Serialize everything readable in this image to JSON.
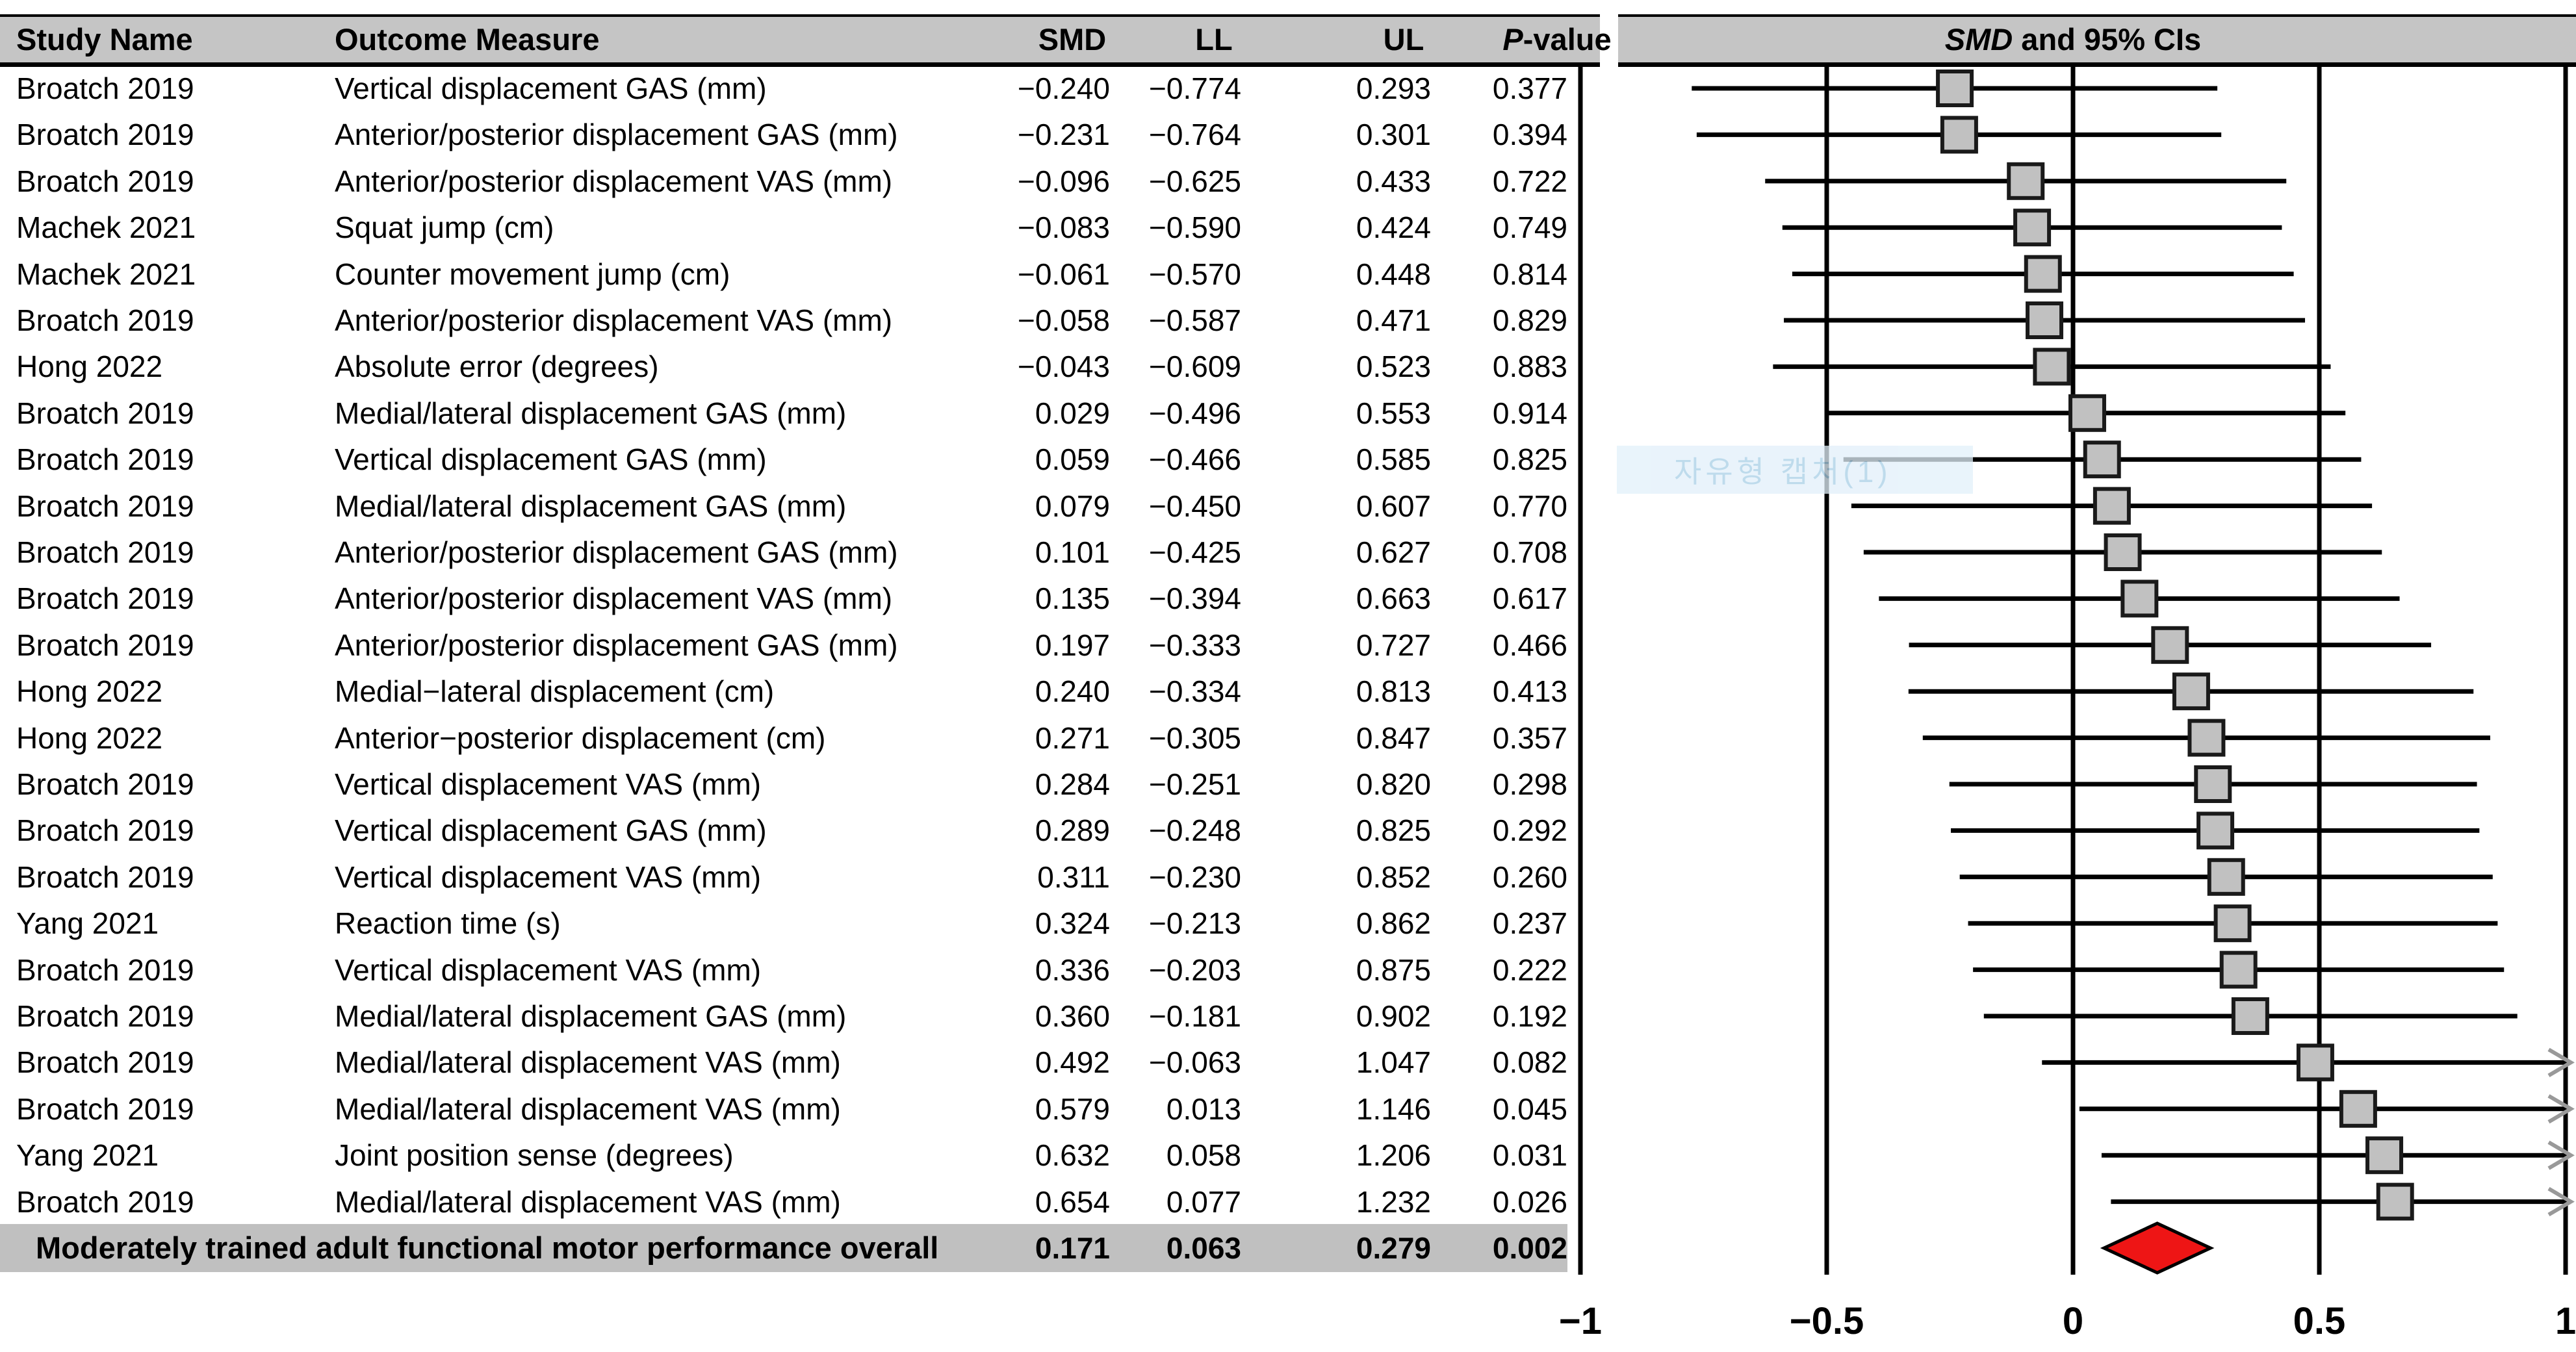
{
  "table": {
    "headers": {
      "study": "Study Name",
      "outcome": "Outcome Measure",
      "smd": "SMD",
      "ll": "LL",
      "ul": "UL",
      "p_italic": "P",
      "p_rest": "-value"
    },
    "overall": {
      "label": "Moderately trained adult functional motor performance overall",
      "smd": 0.171,
      "ll": 0.063,
      "ul": 0.279,
      "p": 0.002
    }
  },
  "plot": {
    "title_italic": "SMD",
    "title_rest": " and 95% CIs"
  },
  "watermark": {
    "text": "자유형 캡처(1)"
  },
  "colors": {
    "header_band": "#c5c5c5",
    "overall_band": "#c0c0c0",
    "square_fill": "#c1c1c1",
    "square_border": "#1a1a1a",
    "ci_line": "#000000",
    "grid_line": "#000000",
    "diamond_fill": "#ee1515",
    "diamond_border": "#000000",
    "arrow": "#999999",
    "watermark_band": "#e2f0fa",
    "watermark_text": "#a9cfe6"
  },
  "chart_data": {
    "type": "forest",
    "title": "SMD and 95% CIs",
    "columns": [
      "Study Name",
      "Outcome Measure",
      "SMD",
      "LL",
      "UL",
      "P-value"
    ],
    "xlim": [
      -1,
      1
    ],
    "x_ticks": [
      {
        "label": "−1",
        "value": -1
      },
      {
        "label": "−0.5",
        "value": -0.5
      },
      {
        "label": "0",
        "value": 0
      },
      {
        "label": "0.5",
        "value": 0.5
      },
      {
        "label": "1",
        "value": 1
      }
    ],
    "grid": "vertical-lines-at-ticks",
    "legend_position": "none",
    "rows": [
      {
        "study": "Broatch 2019",
        "outcome": "Vertical displacement GAS (mm)",
        "smd": -0.24,
        "ll": -0.774,
        "ul": 0.293,
        "p": 0.377
      },
      {
        "study": "Broatch 2019",
        "outcome": "Anterior/posterior displacement GAS (mm)",
        "smd": -0.231,
        "ll": -0.764,
        "ul": 0.301,
        "p": 0.394
      },
      {
        "study": "Broatch 2019",
        "outcome": "Anterior/posterior displacement VAS (mm)",
        "smd": -0.096,
        "ll": -0.625,
        "ul": 0.433,
        "p": 0.722
      },
      {
        "study": "Machek 2021",
        "outcome": "Squat jump (cm)",
        "smd": -0.083,
        "ll": -0.59,
        "ul": 0.424,
        "p": 0.749
      },
      {
        "study": "Machek 2021",
        "outcome": "Counter movement jump (cm)",
        "smd": -0.061,
        "ll": -0.57,
        "ul": 0.448,
        "p": 0.814
      },
      {
        "study": "Broatch 2019",
        "outcome": "Anterior/posterior displacement VAS (mm)",
        "smd": -0.058,
        "ll": -0.587,
        "ul": 0.471,
        "p": 0.829
      },
      {
        "study": "Hong 2022",
        "outcome": "Absolute error (degrees)",
        "smd": -0.043,
        "ll": -0.609,
        "ul": 0.523,
        "p": 0.883
      },
      {
        "study": "Broatch 2019",
        "outcome": "Medial/lateral displacement GAS (mm)",
        "smd": 0.029,
        "ll": -0.496,
        "ul": 0.553,
        "p": 0.914
      },
      {
        "study": "Broatch 2019",
        "outcome": "Vertical displacement GAS (mm)",
        "smd": 0.059,
        "ll": -0.466,
        "ul": 0.585,
        "p": 0.825
      },
      {
        "study": "Broatch 2019",
        "outcome": "Medial/lateral displacement GAS (mm)",
        "smd": 0.079,
        "ll": -0.45,
        "ul": 0.607,
        "p": 0.77
      },
      {
        "study": "Broatch 2019",
        "outcome": "Anterior/posterior displacement GAS (mm)",
        "smd": 0.101,
        "ll": -0.425,
        "ul": 0.627,
        "p": 0.708
      },
      {
        "study": "Broatch 2019",
        "outcome": "Anterior/posterior displacement VAS (mm)",
        "smd": 0.135,
        "ll": -0.394,
        "ul": 0.663,
        "p": 0.617
      },
      {
        "study": "Broatch 2019",
        "outcome": "Anterior/posterior displacement GAS (mm)",
        "smd": 0.197,
        "ll": -0.333,
        "ul": 0.727,
        "p": 0.466
      },
      {
        "study": "Hong 2022",
        "outcome": "Medial−lateral displacement (cm)",
        "smd": 0.24,
        "ll": -0.334,
        "ul": 0.813,
        "p": 0.413
      },
      {
        "study": "Hong 2022",
        "outcome": "Anterior−posterior displacement (cm)",
        "smd": 0.271,
        "ll": -0.305,
        "ul": 0.847,
        "p": 0.357
      },
      {
        "study": "Broatch 2019",
        "outcome": "Vertical displacement VAS (mm)",
        "smd": 0.284,
        "ll": -0.251,
        "ul": 0.82,
        "p": 0.298
      },
      {
        "study": "Broatch 2019",
        "outcome": "Vertical displacement GAS (mm)",
        "smd": 0.289,
        "ll": -0.248,
        "ul": 0.825,
        "p": 0.292
      },
      {
        "study": "Broatch 2019",
        "outcome": "Vertical displacement VAS (mm)",
        "smd": 0.311,
        "ll": -0.23,
        "ul": 0.852,
        "p": 0.26
      },
      {
        "study": "Yang 2021",
        "outcome": "Reaction time (s)",
        "smd": 0.324,
        "ll": -0.213,
        "ul": 0.862,
        "p": 0.237
      },
      {
        "study": "Broatch 2019",
        "outcome": "Vertical displacement VAS (mm)",
        "smd": 0.336,
        "ll": -0.203,
        "ul": 0.875,
        "p": 0.222
      },
      {
        "study": "Broatch 2019",
        "outcome": "Medial/lateral displacement GAS (mm)",
        "smd": 0.36,
        "ll": -0.181,
        "ul": 0.902,
        "p": 0.192
      },
      {
        "study": "Broatch 2019",
        "outcome": "Medial/lateral displacement VAS (mm)",
        "smd": 0.492,
        "ll": -0.063,
        "ul": 1.047,
        "p": 0.082
      },
      {
        "study": "Broatch 2019",
        "outcome": "Medial/lateral displacement VAS (mm)",
        "smd": 0.579,
        "ll": 0.013,
        "ul": 1.146,
        "p": 0.045
      },
      {
        "study": "Yang 2021",
        "outcome": "Joint position sense (degrees)",
        "smd": 0.632,
        "ll": 0.058,
        "ul": 1.206,
        "p": 0.031
      },
      {
        "study": "Broatch 2019",
        "outcome": "Medial/lateral displacement VAS (mm)",
        "smd": 0.654,
        "ll": 0.077,
        "ul": 1.232,
        "p": 0.026
      }
    ],
    "overall": {
      "label": "Moderately trained adult functional motor performance overall",
      "smd": 0.171,
      "ll": 0.063,
      "ul": 0.279,
      "p": 0.002,
      "marker": "red-diamond"
    }
  }
}
